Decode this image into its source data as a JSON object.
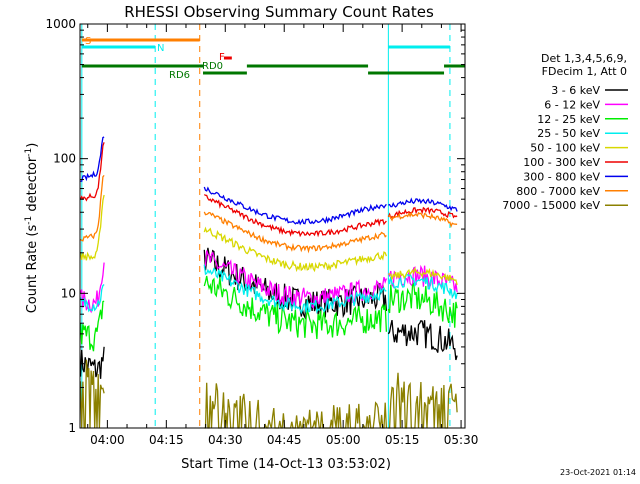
{
  "chart_data": {
    "type": "line",
    "title": "RHESSI Observing Summary Count Rates",
    "xlabel": "Start Time (14-Oct-13 03:53:02)",
    "ylabel_main": "Count Rate (s",
    "ylabel_sup1": "-1",
    "ylabel_mid": " detector",
    "ylabel_sup2": "-1",
    "ylabel_end": ")",
    "y_scale": "log",
    "ylim": [
      1,
      1000
    ],
    "xlim": [
      "03:53:02",
      "05:31:00"
    ],
    "x_ticks": [
      "04:00",
      "04:15",
      "04:30",
      "04:45",
      "05:00",
      "05:15",
      "05:30"
    ],
    "y_ticks": [
      "1",
      "10",
      "100",
      "1000"
    ],
    "legend_header": [
      "Det 1,3,4,5,6,9,",
      "FDecim 1, Att 0"
    ],
    "footer_date": "23-Oct-2021 01:14",
    "flags": {
      "S": "S",
      "N": "N",
      "F": "F",
      "RD0": "RD0",
      "RD6": "RD6"
    },
    "series": [
      {
        "name": "3 - 6 keV",
        "color": "#000000"
      },
      {
        "name": "6 - 12 keV",
        "color": "#ff00ff"
      },
      {
        "name": "12 - 25 keV",
        "color": "#00ee00"
      },
      {
        "name": "25 - 50 keV",
        "color": "#00eeee"
      },
      {
        "name": "50 - 100 keV",
        "color": "#d8d800"
      },
      {
        "name": "100 - 300 keV",
        "color": "#ee0000"
      },
      {
        "name": "300 - 800 keV",
        "color": "#0000ee"
      },
      {
        "name": "800 - 7000 keV",
        "color": "#ff7f00"
      },
      {
        "name": "7000 - 15000 keV",
        "color": "#8b8000"
      }
    ]
  }
}
